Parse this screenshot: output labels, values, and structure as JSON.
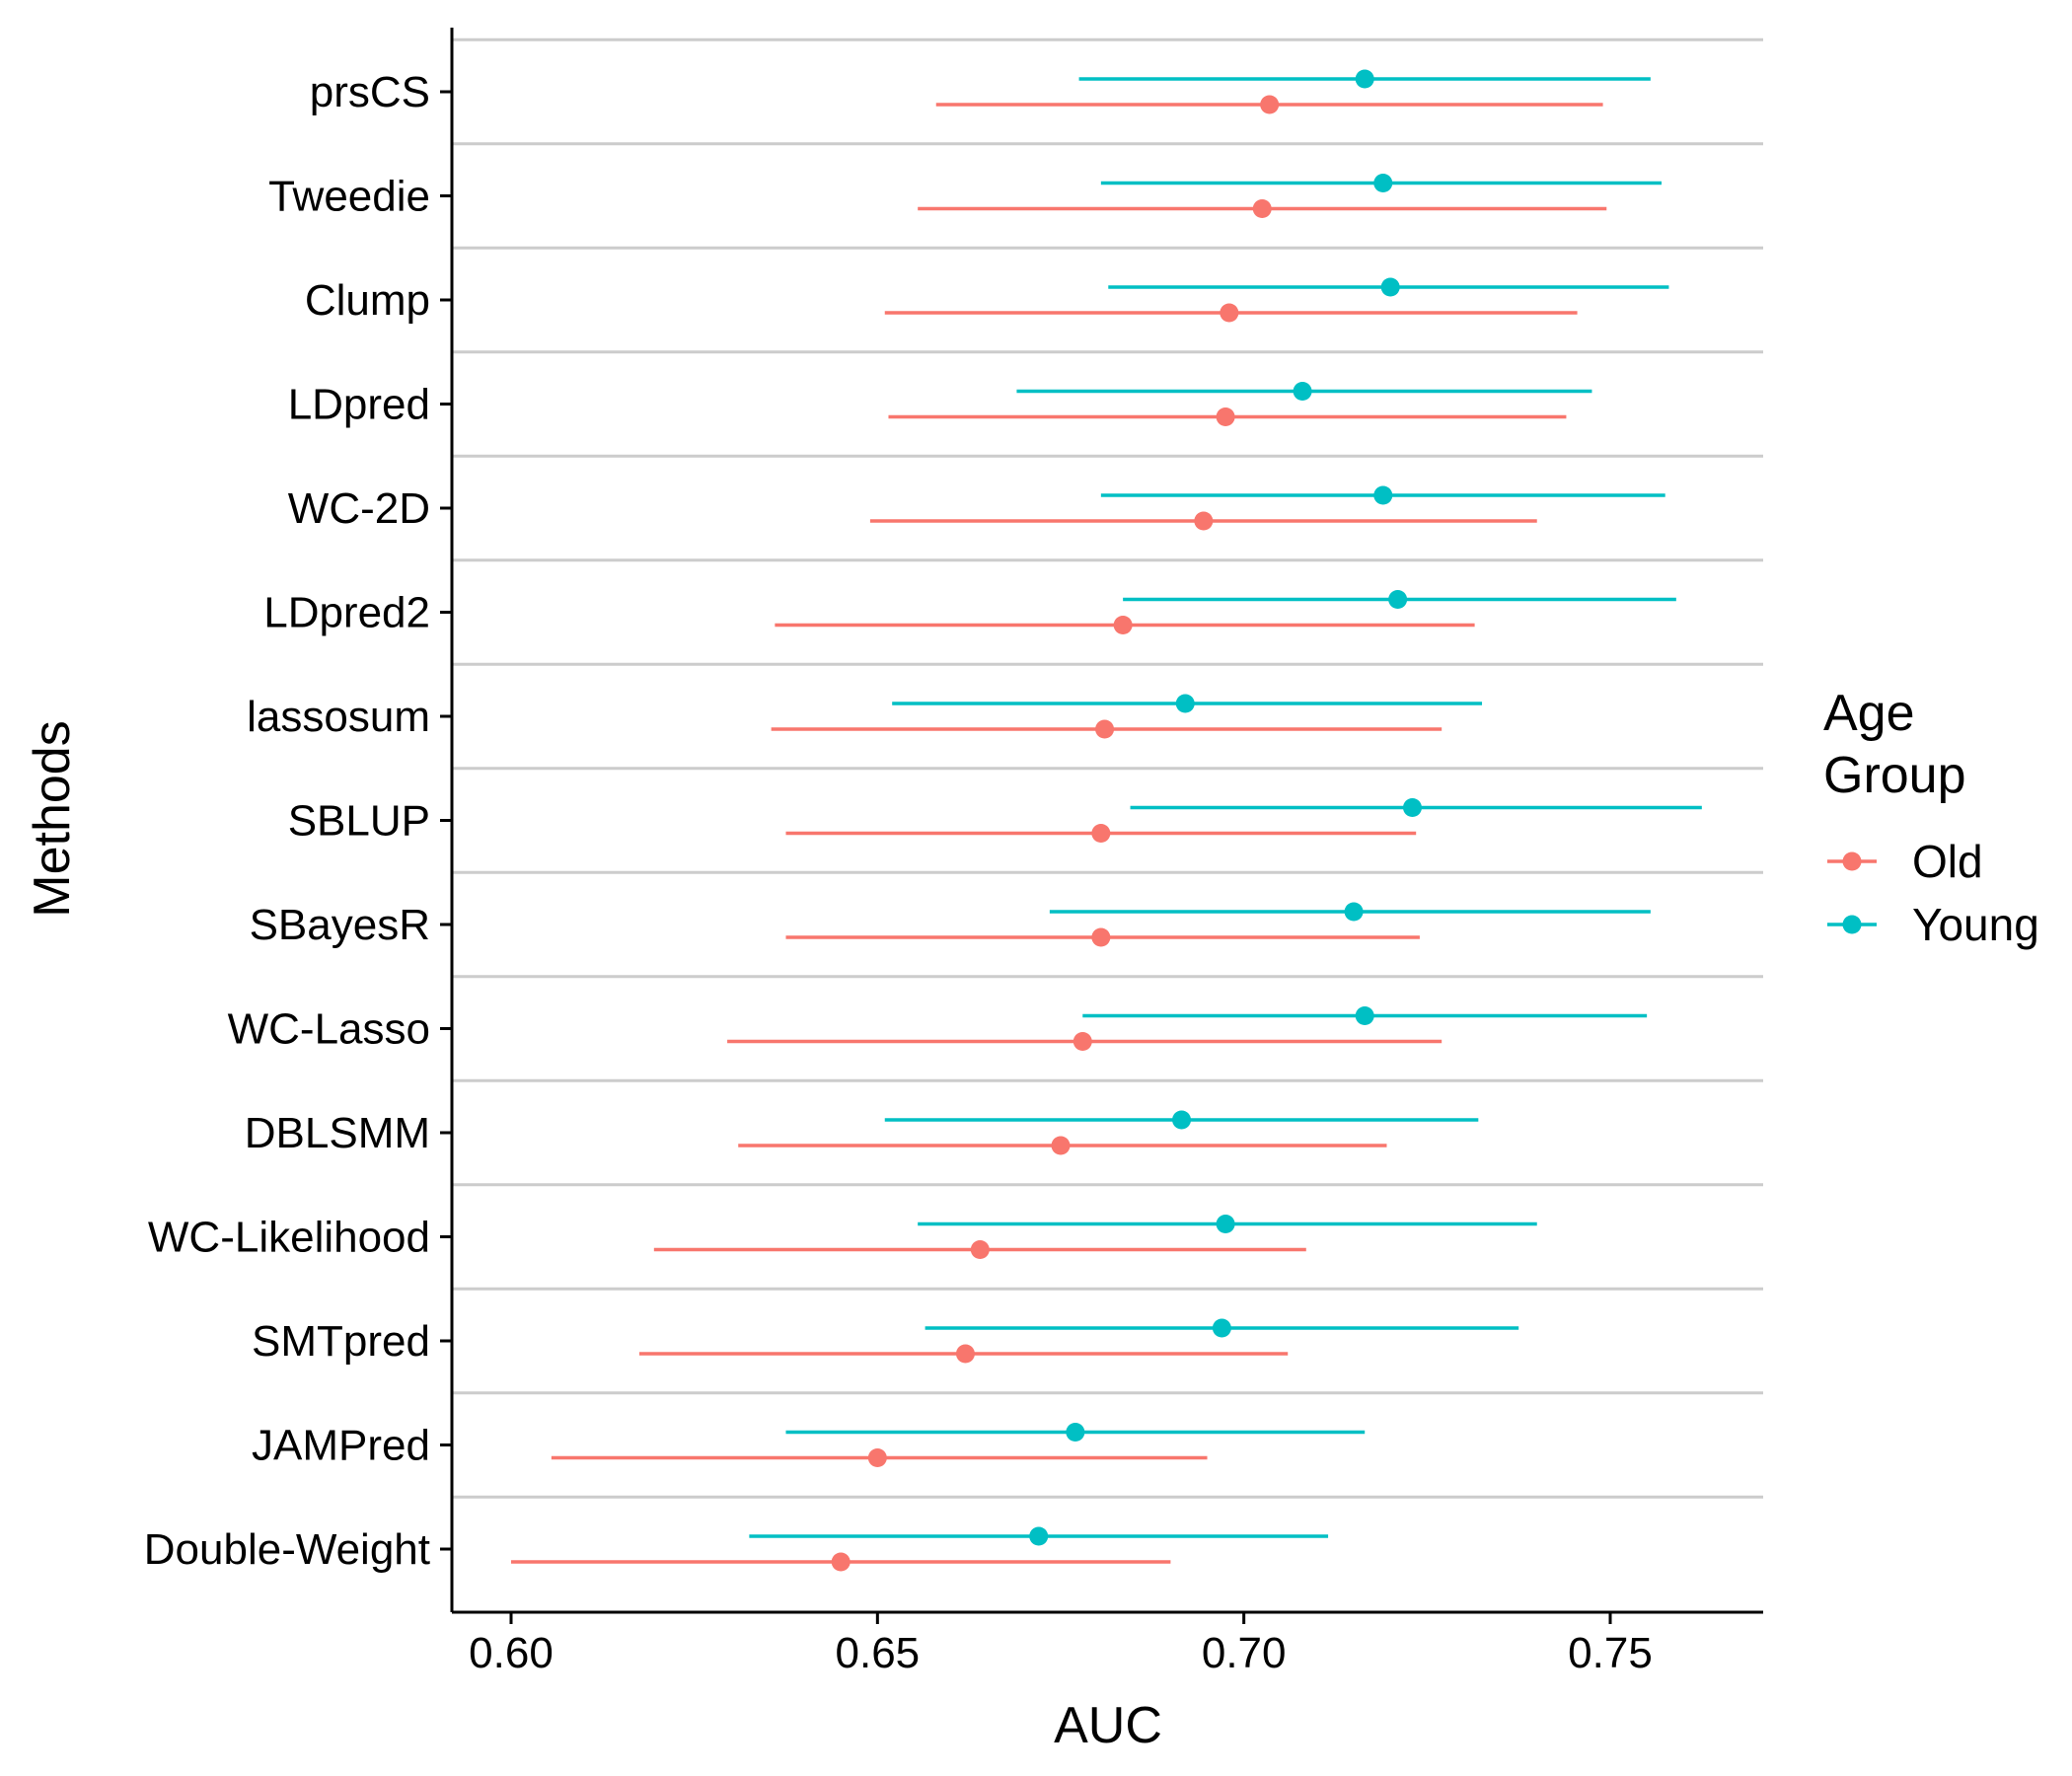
{
  "chart_data": {
    "type": "dot-interval",
    "xlabel": "AUC",
    "ylabel": "Methods",
    "xlim": [
      0.592,
      0.771
    ],
    "xticks": [
      0.6,
      0.65,
      0.7,
      0.75
    ],
    "xtick_labels": [
      "0.60",
      "0.65",
      "0.70",
      "0.75"
    ],
    "grid": "horizontal separators between methods",
    "legend": {
      "title_line1": "Age",
      "title_line2": "Group",
      "placement": "right",
      "entries": [
        {
          "name": "Old",
          "color": "#F8766D"
        },
        {
          "name": "Young",
          "color": "#00BFC4"
        }
      ]
    },
    "methods": [
      "prsCS",
      "Tweedie",
      "Clump",
      "LDpred",
      "WC-2D",
      "LDpred2",
      "lassosum",
      "SBLUP",
      "SBayesR",
      "WC-Lasso",
      "DBLSMM",
      "WC-Likelihood",
      "SMTpred",
      "JAMPred",
      "Double-Weight"
    ],
    "series": [
      {
        "name": "Young",
        "color": "#00BFC4",
        "estimate": [
          0.7165,
          0.719,
          0.72,
          0.708,
          0.719,
          0.721,
          0.692,
          0.723,
          0.715,
          0.7165,
          0.6915,
          0.6975,
          0.697,
          0.677,
          0.672
        ],
        "lower": [
          0.6775,
          0.6805,
          0.6815,
          0.669,
          0.6805,
          0.6835,
          0.652,
          0.6845,
          0.6735,
          0.678,
          0.651,
          0.6555,
          0.6565,
          0.6375,
          0.6325
        ],
        "upper": [
          0.7555,
          0.757,
          0.758,
          0.7475,
          0.7575,
          0.759,
          0.7325,
          0.7625,
          0.7555,
          0.755,
          0.732,
          0.74,
          0.7375,
          0.7165,
          0.7115
        ]
      },
      {
        "name": "Old",
        "color": "#F8766D",
        "estimate": [
          0.7035,
          0.7025,
          0.698,
          0.6975,
          0.6945,
          0.6835,
          0.681,
          0.6805,
          0.6805,
          0.678,
          0.675,
          0.664,
          0.662,
          0.65,
          0.645
        ],
        "lower": [
          0.658,
          0.6555,
          0.651,
          0.6515,
          0.649,
          0.636,
          0.6355,
          0.6375,
          0.6375,
          0.6295,
          0.631,
          0.6195,
          0.6175,
          0.6055,
          0.6
        ],
        "upper": [
          0.749,
          0.7495,
          0.7455,
          0.744,
          0.74,
          0.7315,
          0.727,
          0.7235,
          0.724,
          0.727,
          0.7195,
          0.7085,
          0.706,
          0.695,
          0.69
        ]
      }
    ]
  }
}
